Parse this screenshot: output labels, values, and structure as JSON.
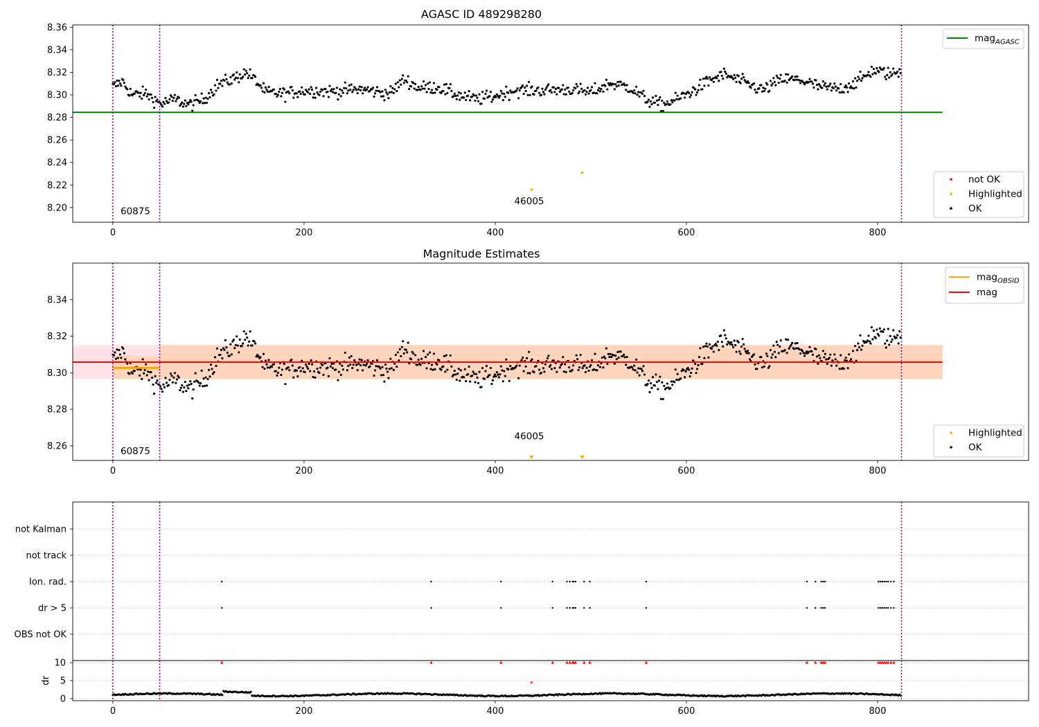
{
  "chart_data": [
    {
      "type": "scatter",
      "title": "AGASC ID 489298280",
      "xlim": [
        -42,
        958
      ],
      "ylim": [
        8.187,
        8.362
      ],
      "xticks": [
        0,
        200,
        400,
        600,
        800
      ],
      "yticks": [
        8.2,
        8.22,
        8.24,
        8.26,
        8.28,
        8.3,
        8.32,
        8.34,
        8.36
      ],
      "legend_top": [
        {
          "label": "mag",
          "subscript": "AGASC",
          "color": "#008000"
        }
      ],
      "legend_bottom": [
        {
          "label": "not OK",
          "color": "#ff0000"
        },
        {
          "label": "Highlighted",
          "color": "#ffa500"
        },
        {
          "label": "OK",
          "color": "#000000"
        }
      ],
      "legend_positions": [
        "upper right",
        "lower right"
      ],
      "hlines": [
        {
          "name": "mag_AGASC",
          "y": 8.2845,
          "x": [
            -42,
            868
          ],
          "color": "#008000"
        }
      ],
      "vlines": [
        0,
        49,
        825
      ],
      "annotations": [
        {
          "text": "60875",
          "x": 8,
          "y": 8.194
        },
        {
          "text": "46005",
          "x": 420,
          "y": 8.203
        }
      ],
      "highlighted_points": [
        {
          "x": 438,
          "y": 8.216
        },
        {
          "x": 491,
          "y": 8.231
        }
      ]
    },
    {
      "type": "scatter",
      "title": "Magnitude Estimates",
      "xlim": [
        -42,
        958
      ],
      "ylim": [
        8.252,
        8.36
      ],
      "xticks": [
        0,
        200,
        400,
        600,
        800
      ],
      "yticks": [
        8.26,
        8.28,
        8.3,
        8.32,
        8.34
      ],
      "legend_top": [
        {
          "label": "mag",
          "subscript": "OBSID",
          "color": "#ffa500"
        },
        {
          "label": "mag",
          "subscript": "",
          "color": "#ff0000"
        }
      ],
      "legend_bottom": [
        {
          "label": "Highlighted",
          "color": "#ffa500"
        },
        {
          "label": "OK",
          "color": "#000000"
        }
      ],
      "legend_positions": [
        "upper right",
        "lower right"
      ],
      "hlines": [
        {
          "name": "mag",
          "y": 8.3058,
          "x": [
            -42,
            868
          ],
          "color": "#ff0000"
        },
        {
          "name": "mag_OBSID",
          "y": 8.3027,
          "x": [
            0,
            49
          ],
          "color": "#ffa500"
        }
      ],
      "bands": [
        {
          "y": [
            8.2965,
            8.3152
          ],
          "x": [
            -42,
            868
          ],
          "color": "#ffc0cb",
          "opacity": 0.45
        },
        {
          "y": [
            8.2965,
            8.3152
          ],
          "x": [
            49,
            868
          ],
          "color": "#ffcc99",
          "opacity": 0.55
        },
        {
          "y": [
            8.2965,
            8.3092
          ],
          "x": [
            0,
            49
          ],
          "color": "#ffcc99",
          "opacity": 0.55
        }
      ],
      "vlines": [
        0,
        49,
        825
      ],
      "annotations": [
        {
          "text": "60875",
          "x": 8,
          "y": 8.2555
        },
        {
          "text": "46005",
          "x": 420,
          "y": 8.2635
        }
      ],
      "highlighted_points": [
        {
          "x": 438,
          "y": 8.2535,
          "marker": "v"
        },
        {
          "x": 491,
          "y": 8.2535,
          "marker": "v"
        }
      ]
    },
    {
      "type": "scatter",
      "xlim": [
        -42,
        958
      ],
      "categories": [
        "OBS not OK",
        "dr > 5",
        "Ion. rad.",
        "not track",
        "not Kalman"
      ],
      "flagged_x": [
        114,
        333,
        406,
        460,
        475,
        478,
        481,
        482,
        484,
        493,
        499,
        558,
        726,
        735,
        741,
        743,
        745,
        801,
        803,
        805,
        807,
        809,
        811,
        814,
        817
      ],
      "vlines": [
        0,
        49,
        825
      ]
    },
    {
      "type": "scatter",
      "xlim": [
        -42,
        958
      ],
      "ylim": [
        -0.6,
        10.6
      ],
      "yticks": [
        0,
        5,
        10
      ],
      "ylabel": "dr",
      "xticks": [
        0,
        200,
        400,
        600,
        800
      ],
      "highlighted_points": [
        {
          "x": 438,
          "y": 4.5,
          "marker": "^",
          "color": "#ff0000"
        }
      ],
      "vlines": [
        0,
        49,
        825
      ]
    }
  ]
}
